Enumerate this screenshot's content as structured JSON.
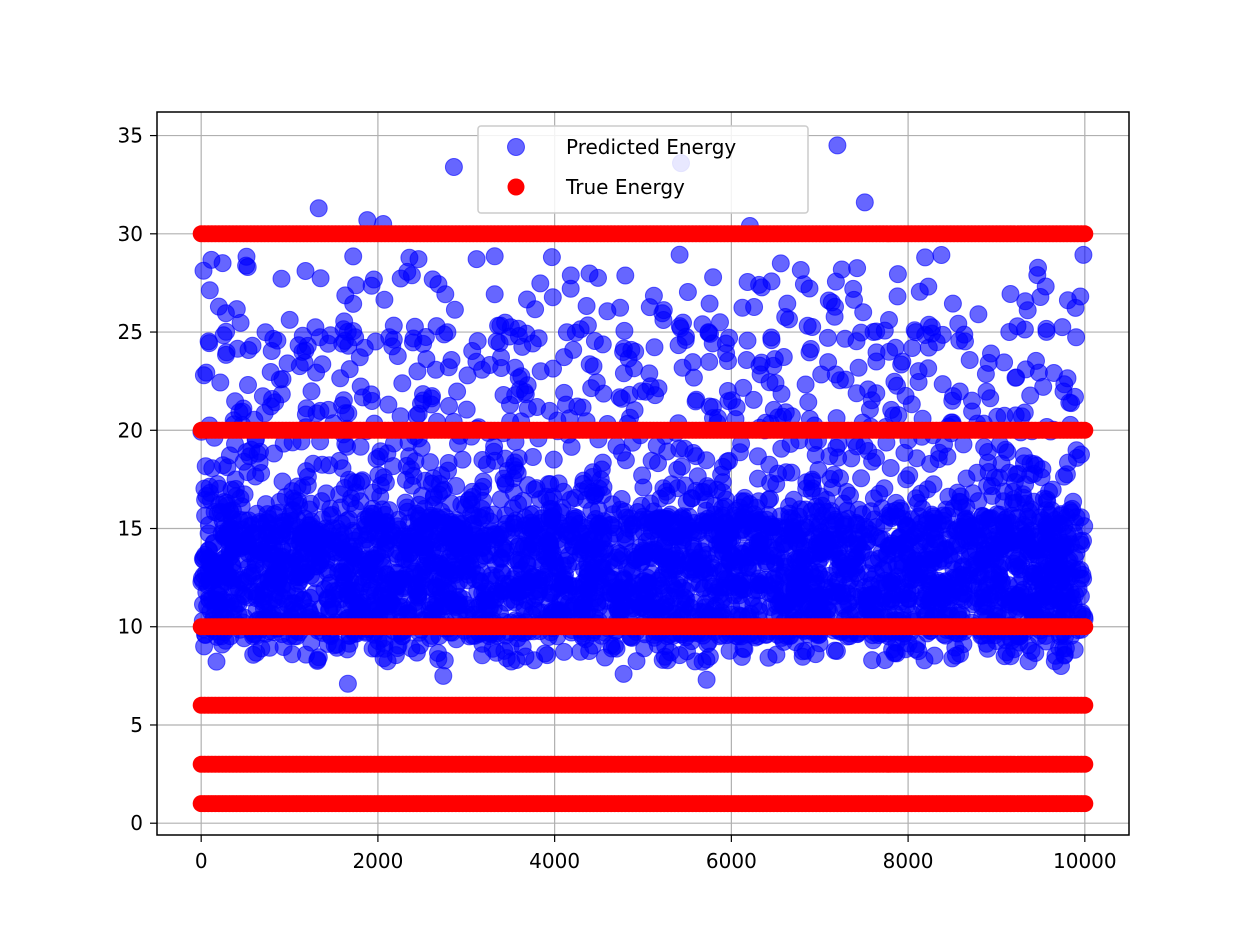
{
  "chart_data": {
    "type": "scatter",
    "title": "",
    "xlabel": "",
    "ylabel": "",
    "xlim": [
      -500,
      10500
    ],
    "ylim": [
      -0.6,
      36.2
    ],
    "xticks": [
      0,
      2000,
      4000,
      6000,
      8000,
      10000
    ],
    "yticks": [
      0,
      5,
      10,
      15,
      20,
      25,
      30,
      35
    ],
    "grid": true,
    "legend_position": "top-center",
    "series": [
      {
        "name": "Predicted Energy",
        "color": "#0000ff",
        "opacity": 0.6,
        "marker": "circle",
        "x_range": [
          0,
          10000
        ],
        "dense_band": [
          9.5,
          15.5
        ],
        "sparse_range": [
          7.1,
          34.6
        ],
        "highlighted_points": [
          {
            "x": 1330,
            "y": 31.3
          },
          {
            "x": 1880,
            "y": 30.7
          },
          {
            "x": 2060,
            "y": 30.5
          },
          {
            "x": 2860,
            "y": 33.4
          },
          {
            "x": 5430,
            "y": 33.6
          },
          {
            "x": 6210,
            "y": 30.4
          },
          {
            "x": 7200,
            "y": 34.5
          },
          {
            "x": 7510,
            "y": 31.6
          },
          {
            "x": 1660,
            "y": 7.1
          },
          {
            "x": 2740,
            "y": 7.5
          },
          {
            "x": 4780,
            "y": 7.6
          },
          {
            "x": 5720,
            "y": 7.3
          },
          {
            "x": 9730,
            "y": 8.0
          }
        ]
      },
      {
        "name": "True Energy",
        "color": "#ff0000",
        "marker": "circle",
        "x_range": [
          0,
          10000
        ],
        "levels": [
          1,
          3,
          6,
          10,
          20,
          30
        ]
      }
    ]
  }
}
